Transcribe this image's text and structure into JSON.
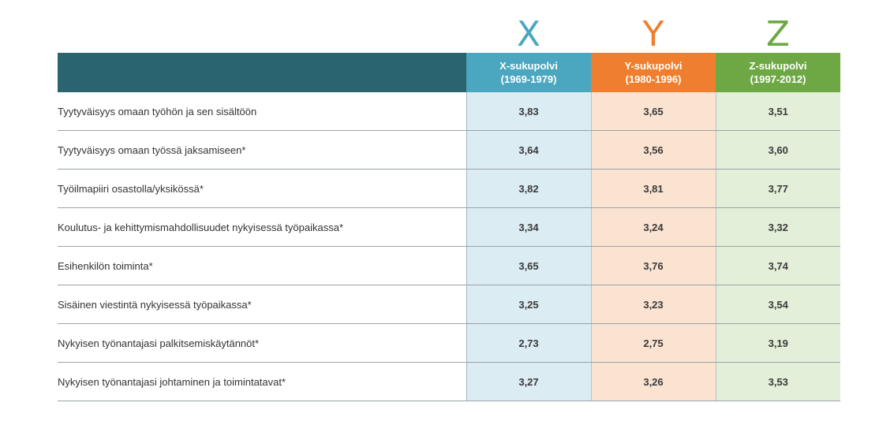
{
  "chart_data": {
    "type": "table",
    "letters": [
      "X",
      "Y",
      "Z"
    ],
    "columns": [
      {
        "key": "x",
        "name": "X-sukupolvi",
        "years": "(1969-1979)",
        "header_color": "#4ba7bf",
        "cell_color": "#dcecf3",
        "letter_color": "#4ba7bf"
      },
      {
        "key": "y",
        "name": "Y-sukupolvi",
        "years": "(1980-1996)",
        "header_color": "#ef7f2e",
        "cell_color": "#fbe3d2",
        "letter_color": "#ef7f2e"
      },
      {
        "key": "z",
        "name": "Z-sukupolvi",
        "years": "(1997-2012)",
        "header_color": "#6ea844",
        "cell_color": "#e3efd9",
        "letter_color": "#6ea844"
      }
    ],
    "rows": [
      {
        "label": "Tyytyväisyys omaan työhön ja sen sisältöön",
        "values": [
          "3,83",
          "3,65",
          "3,51"
        ]
      },
      {
        "label": "Tyytyväisyys omaan työssä jaksamiseen*",
        "values": [
          "3,64",
          "3,56",
          "3,60"
        ]
      },
      {
        "label": "Työilmapiiri osastolla/yksikössä*",
        "values": [
          "3,82",
          "3,81",
          "3,77"
        ]
      },
      {
        "label": "Koulutus- ja kehittymismahdollisuudet nykyisessä työpaikassa*",
        "values": [
          "3,34",
          "3,24",
          "3,32"
        ]
      },
      {
        "label": "Esihenkilön toiminta*",
        "values": [
          "3,65",
          "3,76",
          "3,74"
        ]
      },
      {
        "label": "Sisäinen viestintä nykyisessä työpaikassa*",
        "values": [
          "3,25",
          "3,23",
          "3,54"
        ]
      },
      {
        "label": "Nykyisen työnantajasi palkitsemiskäytännöt*",
        "values": [
          "2,73",
          "2,75",
          "3,19"
        ]
      },
      {
        "label": "Nykyisen työnantajasi johtaminen ja toimintatavat*",
        "values": [
          "3,27",
          "3,26",
          "3,53"
        ]
      }
    ],
    "header_corner_color": "#2a6470"
  }
}
